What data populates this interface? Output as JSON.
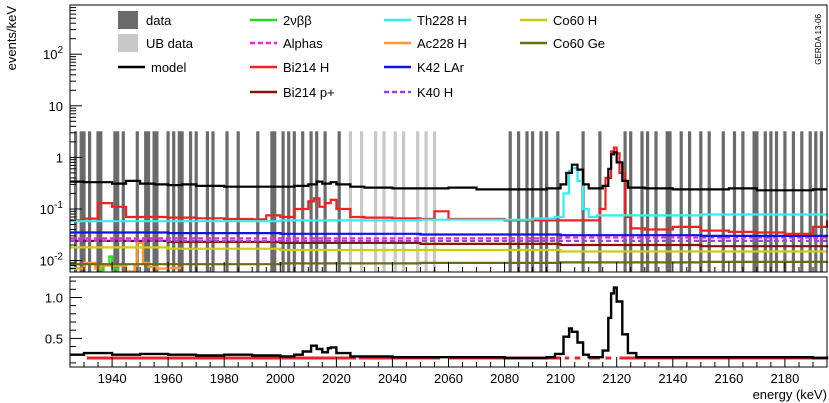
{
  "chart_data": [
    {
      "type": "line",
      "panel": "upper",
      "ylabel": "events/keV",
      "y_scale": "log",
      "ylim": [
        0.006,
        900
      ],
      "xlim": [
        1925,
        2195
      ],
      "y_ticks": [
        {
          "value": 0.01,
          "label": "10",
          "exp": "-2"
        },
        {
          "value": 0.1,
          "label": "10",
          "exp": "-1"
        },
        {
          "value": 1,
          "label": "1",
          "exp": ""
        },
        {
          "value": 10,
          "label": "10",
          "exp": ""
        },
        {
          "value": 100,
          "label": "10",
          "exp": "2"
        }
      ],
      "annotation": "GERDA 13-06",
      "legend_placement": "top, four columns",
      "legend": [
        {
          "label": "data",
          "color": "#6b6b6b",
          "style": "box"
        },
        {
          "label": "UB data",
          "color": "#c8c8c8",
          "style": "box"
        },
        {
          "label": "model",
          "color": "#000000",
          "style": "line"
        },
        {
          "label": "2νββ",
          "color": "#22dd22",
          "style": "line"
        },
        {
          "label": "Alphas",
          "color": "#ee22ee",
          "style": "dash"
        },
        {
          "label": "Bi214 H",
          "color": "#ee2222",
          "style": "line"
        },
        {
          "label": "Bi214 p+",
          "color": "#8b1010",
          "style": "line"
        },
        {
          "label": "Th228 H",
          "color": "#33eeee",
          "style": "line"
        },
        {
          "label": "Ac228 H",
          "color": "#ff9933",
          "style": "line"
        },
        {
          "label": "K42 LAr",
          "color": "#1111ee",
          "style": "line"
        },
        {
          "label": "K40 H",
          "color": "#9944ee",
          "style": "dash"
        },
        {
          "label": "Co60 H",
          "color": "#cccc11",
          "style": "line"
        },
        {
          "label": "Co60 Ge",
          "color": "#6b6b10",
          "style": "line"
        }
      ],
      "data_bars": {
        "height": 3.2,
        "dark_x": [
          1927,
          1929,
          1930,
          1932,
          1935,
          1936,
          1941,
          1942,
          1944,
          1949,
          1952,
          1953,
          1955,
          1956,
          1960,
          1962,
          1964,
          1965,
          1968,
          1970,
          1974,
          1976,
          1981,
          1985,
          1992,
          1997,
          1998,
          2001,
          2003,
          2005,
          2008,
          2011,
          2013,
          2016,
          2021,
          2082,
          2085,
          2088,
          2090,
          2093,
          2095,
          2099,
          2108,
          2114,
          2123,
          2125,
          2129,
          2131,
          2134,
          2138,
          2139,
          2143,
          2146,
          2150,
          2153,
          2158,
          2162,
          2165,
          2169,
          2170,
          2173,
          2175,
          2177,
          2180,
          2183,
          2186,
          2189,
          2191,
          2193
        ],
        "ub_x": [
          2025,
          2029,
          2034,
          2037,
          2041,
          2044,
          2049,
          2052,
          2055
        ]
      },
      "series": [
        {
          "name": "model",
          "color": "#000000",
          "x": [
            1925,
            1930,
            1935,
            1940,
            1945,
            1950,
            1955,
            1960,
            1965,
            1970,
            1980,
            1990,
            2000,
            2005,
            2010,
            2013,
            2015,
            2018,
            2020,
            2025,
            2030,
            2040,
            2050,
            2060,
            2070,
            2080,
            2090,
            2095,
            2100,
            2102,
            2104,
            2106,
            2108,
            2110,
            2115,
            2117,
            2118,
            2119,
            2120,
            2122,
            2124,
            2130,
            2140,
            2150,
            2160,
            2170,
            2180,
            2190,
            2195
          ],
          "y": [
            0.34,
            0.33,
            0.33,
            0.31,
            0.35,
            0.31,
            0.3,
            0.29,
            0.3,
            0.28,
            0.27,
            0.27,
            0.27,
            0.28,
            0.3,
            0.34,
            0.31,
            0.33,
            0.3,
            0.27,
            0.26,
            0.25,
            0.25,
            0.26,
            0.24,
            0.24,
            0.24,
            0.25,
            0.3,
            0.5,
            0.72,
            0.58,
            0.3,
            0.25,
            0.28,
            0.6,
            1.15,
            1.25,
            0.8,
            0.35,
            0.26,
            0.25,
            0.24,
            0.24,
            0.25,
            0.23,
            0.23,
            0.24,
            0.24
          ]
        },
        {
          "name": "Th228 H",
          "color": "#33eeee",
          "x": [
            1925,
            1960,
            2000,
            2050,
            2090,
            2098,
            2101,
            2103,
            2104,
            2106,
            2108,
            2110,
            2113,
            2150,
            2195
          ],
          "y": [
            0.058,
            0.058,
            0.06,
            0.062,
            0.065,
            0.07,
            0.2,
            0.55,
            0.62,
            0.35,
            0.1,
            0.07,
            0.075,
            0.078,
            0.078
          ]
        },
        {
          "name": "Bi214 H",
          "color": "#ee2222",
          "x": [
            1925,
            1930,
            1935,
            1940,
            1945,
            1950,
            1960,
            1970,
            1980,
            1990,
            1995,
            2000,
            2005,
            2010,
            2012,
            2014,
            2016,
            2018,
            2020,
            2025,
            2030,
            2040,
            2050,
            2055,
            2060,
            2080,
            2100,
            2110,
            2114,
            2116,
            2118,
            2119,
            2120,
            2121,
            2123,
            2125,
            2130,
            2140,
            2150,
            2160,
            2170,
            2180,
            2190,
            2195
          ],
          "y": [
            0.06,
            0.065,
            0.13,
            0.11,
            0.07,
            0.07,
            0.068,
            0.066,
            0.064,
            0.063,
            0.075,
            0.07,
            0.1,
            0.14,
            0.16,
            0.11,
            0.13,
            0.15,
            0.1,
            0.07,
            0.068,
            0.066,
            0.064,
            0.09,
            0.064,
            0.06,
            0.06,
            0.06,
            0.1,
            0.4,
            1.3,
            1.55,
            1.2,
            0.5,
            0.07,
            0.042,
            0.04,
            0.045,
            0.038,
            0.036,
            0.035,
            0.033,
            0.045,
            0.06
          ]
        },
        {
          "name": "K42 LAr",
          "color": "#1111ee",
          "x": [
            1925,
            1960,
            2000,
            2050,
            2100,
            2150,
            2195
          ],
          "y": [
            0.035,
            0.034,
            0.033,
            0.032,
            0.031,
            0.03,
            0.029
          ]
        },
        {
          "name": "Alphas",
          "color": "#ee22ee",
          "x": [
            1925,
            2000,
            2100,
            2195
          ],
          "y": [
            0.027,
            0.027,
            0.028,
            0.029
          ]
        },
        {
          "name": "K40 H",
          "color": "#9944ee",
          "x": [
            1925,
            2000,
            2100,
            2195
          ],
          "y": [
            0.024,
            0.024,
            0.024,
            0.024
          ]
        },
        {
          "name": "Bi214 p+",
          "color": "#8b1010",
          "x": [
            1925,
            1960,
            2000,
            2050,
            2100,
            2150,
            2195
          ],
          "y": [
            0.024,
            0.023,
            0.022,
            0.021,
            0.02,
            0.019,
            0.018
          ]
        },
        {
          "name": "Co60 H",
          "color": "#cccc11",
          "x": [
            1925,
            1960,
            2000,
            2050,
            2100,
            2150,
            2195
          ],
          "y": [
            0.018,
            0.017,
            0.016,
            0.016,
            0.015,
            0.015,
            0.015
          ]
        },
        {
          "name": "Co60 Ge",
          "color": "#6b6b10",
          "x": [
            1925,
            1960,
            2000,
            2050,
            2100,
            2150,
            2195
          ],
          "y": [
            0.0085,
            0.0085,
            0.0088,
            0.009,
            0.0092,
            0.0094,
            0.0095
          ]
        },
        {
          "name": "Ac228 H",
          "color": "#ff9933",
          "x": [
            1925,
            1930,
            1934,
            1936,
            1945,
            1948,
            1949,
            1951,
            1953,
            1956,
            1960,
            1965
          ],
          "y": [
            0.007,
            0.009,
            0.007,
            0.008,
            0.0062,
            0.008,
            0.022,
            0.009,
            0.0075,
            0.007,
            0.0072,
            0.006
          ]
        },
        {
          "name": "2νββ",
          "color": "#22dd22",
          "x": [
            1935,
            1937,
            1939,
            1940,
            1942
          ],
          "y": [
            0.0065,
            0.0085,
            0.012,
            0.007,
            0.0062
          ]
        }
      ]
    },
    {
      "type": "line",
      "panel": "lower",
      "xlabel": "energy (keV)",
      "xlim": [
        1925,
        2195
      ],
      "ylim": [
        0.15,
        1.25
      ],
      "y_ticks": [
        {
          "value": 0.5,
          "label": "0.5"
        },
        {
          "value": 1.0,
          "label": "1.0"
        }
      ],
      "x_ticks": [
        1940,
        1960,
        1980,
        2000,
        2020,
        2040,
        2060,
        2080,
        2100,
        2120,
        2140,
        2160,
        2180
      ],
      "series": [
        {
          "name": "model",
          "color": "#000000",
          "x": [
            1925,
            1930,
            1940,
            1950,
            1960,
            1970,
            1980,
            1990,
            2000,
            2005,
            2008,
            2011,
            2013,
            2015,
            2017,
            2018,
            2020,
            2025,
            2030,
            2040,
            2050,
            2060,
            2070,
            2080,
            2090,
            2095,
            2098,
            2101,
            2103,
            2104,
            2106,
            2108,
            2110,
            2113,
            2115,
            2117,
            2118,
            2119,
            2120,
            2122,
            2124,
            2127,
            2130,
            2140,
            2150,
            2160,
            2170,
            2180,
            2190,
            2195
          ],
          "y": [
            0.3,
            0.32,
            0.3,
            0.31,
            0.3,
            0.29,
            0.3,
            0.29,
            0.28,
            0.3,
            0.34,
            0.41,
            0.37,
            0.33,
            0.38,
            0.39,
            0.32,
            0.28,
            0.28,
            0.27,
            0.27,
            0.27,
            0.27,
            0.26,
            0.26,
            0.27,
            0.31,
            0.52,
            0.62,
            0.58,
            0.45,
            0.3,
            0.27,
            0.27,
            0.35,
            0.75,
            1.05,
            1.12,
            0.95,
            0.55,
            0.32,
            0.27,
            0.27,
            0.27,
            0.27,
            0.27,
            0.27,
            0.27,
            0.26,
            0.28
          ]
        },
        {
          "name": "data",
          "color": "#ee2222",
          "style": "dashed-segments",
          "segments": [
            [
              1931,
              2027
            ],
            [
              2028,
              2057
            ],
            [
              2060,
              2100
            ],
            [
              2101.5,
              2103
            ],
            [
              2105,
              2107
            ],
            [
              2110,
              2114
            ],
            [
              2116,
              2118
            ],
            [
              2121,
              2195
            ]
          ],
          "y": 0.26
        }
      ]
    }
  ]
}
